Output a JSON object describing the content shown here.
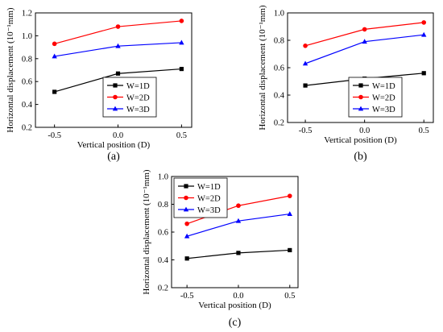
{
  "chart_data": [
    {
      "panel": "(a)",
      "type": "line",
      "xlabel": "Vertical position (D)",
      "ylabel": "Horizontal displacement (10⁻¹mm)",
      "x": [
        -0.5,
        0.0,
        0.5
      ],
      "xticks": [
        "-0.5",
        "0.0",
        "0.5"
      ],
      "xlim": [
        -0.65,
        0.58
      ],
      "ylim": [
        0.2,
        1.2
      ],
      "yticks": [
        "0.2",
        "0.4",
        "0.6",
        "0.8",
        "1.0",
        "1.2"
      ],
      "legend_position": "lower-right",
      "series": [
        {
          "name": "W=1D",
          "color": "#000000",
          "marker": "square",
          "values": [
            0.51,
            0.67,
            0.71
          ]
        },
        {
          "name": "W=2D",
          "color": "#ff0000",
          "marker": "circle",
          "values": [
            0.93,
            1.08,
            1.13
          ]
        },
        {
          "name": "W=3D",
          "color": "#0000ff",
          "marker": "triangle",
          "values": [
            0.82,
            0.91,
            0.94
          ]
        }
      ]
    },
    {
      "panel": "(b)",
      "type": "line",
      "xlabel": "Vertical position (D)",
      "ylabel": "Horizontal displacement (10⁻¹mm)",
      "x": [
        -0.5,
        0.0,
        0.5
      ],
      "xticks": [
        "-0.5",
        "0.0",
        "0.5"
      ],
      "xlim": [
        -0.65,
        0.58
      ],
      "ylim": [
        0.2,
        1.0
      ],
      "yticks": [
        "0.2",
        "0.4",
        "0.6",
        "0.8",
        "1.0"
      ],
      "legend_position": "lower-right",
      "series": [
        {
          "name": "W=1D",
          "color": "#000000",
          "marker": "square",
          "values": [
            0.47,
            0.52,
            0.56
          ]
        },
        {
          "name": "W=2D",
          "color": "#ff0000",
          "marker": "circle",
          "values": [
            0.76,
            0.88,
            0.93
          ]
        },
        {
          "name": "W=3D",
          "color": "#0000ff",
          "marker": "triangle",
          "values": [
            0.63,
            0.79,
            0.84
          ]
        }
      ]
    },
    {
      "panel": "(c)",
      "type": "line",
      "xlabel": "Vertical position (D)",
      "ylabel": "Horizontal displacement (10⁻¹mm)",
      "x": [
        -0.5,
        0.0,
        0.5
      ],
      "xticks": [
        "-0.5",
        "0.0",
        "0.5"
      ],
      "xlim": [
        -0.65,
        0.58
      ],
      "ylim": [
        0.2,
        1.0
      ],
      "yticks": [
        "0.2",
        "0.4",
        "0.6",
        "0.8",
        "1.0"
      ],
      "legend_position": "top-left",
      "series": [
        {
          "name": "W=1D",
          "color": "#000000",
          "marker": "square",
          "values": [
            0.41,
            0.45,
            0.47
          ]
        },
        {
          "name": "W=2D",
          "color": "#ff0000",
          "marker": "circle",
          "values": [
            0.66,
            0.79,
            0.86
          ]
        },
        {
          "name": "W=3D",
          "color": "#0000ff",
          "marker": "triangle",
          "values": [
            0.57,
            0.68,
            0.73
          ]
        }
      ]
    }
  ]
}
